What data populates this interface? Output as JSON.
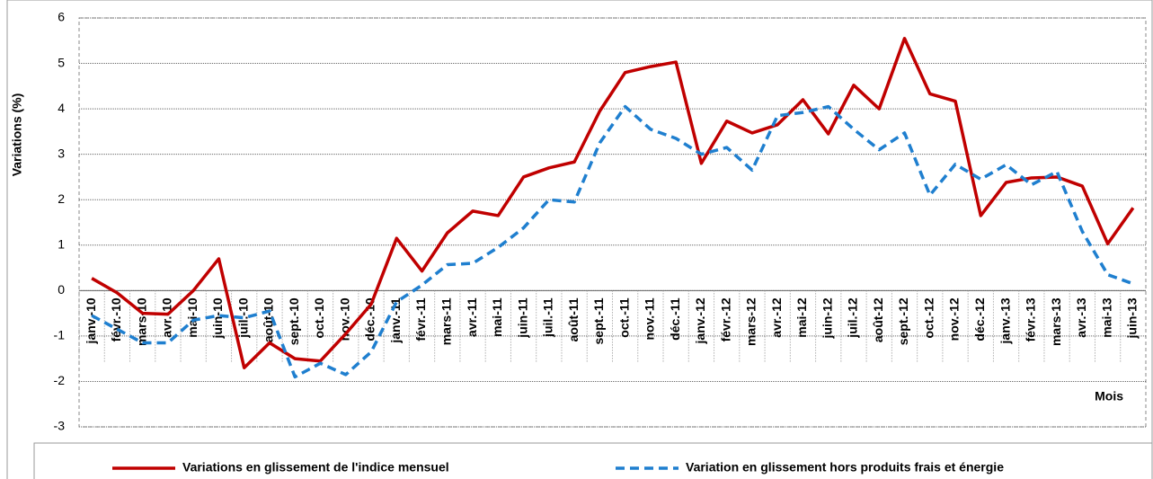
{
  "chart_data": {
    "type": "line",
    "y_label": "Variations (%)",
    "x_label": "Mois",
    "categories": [
      "janv.-10",
      "févr.-10",
      "mars-10",
      "avr.-10",
      "mai-10",
      "juin-10",
      "juil.-10",
      "août-10",
      "sept.-10",
      "oct.-10",
      "nov.-10",
      "déc.-10",
      "janv.-11",
      "févr.-11",
      "mars-11",
      "avr.-11",
      "mai-11",
      "juin-11",
      "juil.-11",
      "août-11",
      "sept.-11",
      "oct.-11",
      "nov.-11",
      "déc.-11",
      "janv.-12",
      "févr.-12",
      "mars-12",
      "avr.-12",
      "mai-12",
      "juin-12",
      "juil.-12",
      "août-12",
      "sept.-12",
      "oct.-12",
      "nov.-12",
      "déc.-12",
      "janv.-13",
      "févr.-13",
      "mars-13",
      "avr.-13",
      "mai-13",
      "juin-13"
    ],
    "series": [
      {
        "name": "Variations en glissement de l'indice mensuel",
        "color": "#c00000",
        "dash": false,
        "values": [
          0.27,
          -0.05,
          -0.5,
          -0.52,
          0.0,
          0.7,
          -1.7,
          -1.15,
          -1.5,
          -1.55,
          -0.95,
          -0.3,
          1.15,
          0.43,
          1.27,
          1.75,
          1.65,
          2.5,
          2.7,
          2.83,
          3.95,
          4.8,
          4.93,
          5.03,
          2.8,
          3.73,
          3.47,
          3.65,
          4.2,
          3.45,
          4.52,
          4.0,
          5.55,
          4.33,
          4.17,
          1.65,
          2.38,
          2.48,
          2.5,
          2.3,
          1.03,
          1.82
        ]
      },
      {
        "name": "Variation en glissement hors produits frais et énergie",
        "color": "#1f7fcf",
        "dash": true,
        "values": [
          -0.55,
          -0.85,
          -1.15,
          -1.15,
          -0.65,
          -0.55,
          -0.6,
          -0.45,
          -1.9,
          -1.6,
          -1.85,
          -1.35,
          -0.25,
          0.12,
          0.57,
          0.6,
          0.95,
          1.38,
          2.0,
          1.95,
          3.25,
          4.05,
          3.55,
          3.35,
          3.0,
          3.15,
          2.65,
          3.85,
          3.92,
          4.05,
          3.55,
          3.1,
          3.47,
          2.1,
          2.78,
          2.45,
          2.77,
          2.33,
          2.62,
          1.3,
          0.35,
          0.15
        ]
      }
    ],
    "ylim": [
      -3,
      6
    ],
    "yticks": [
      -3,
      -2,
      -1,
      0,
      1,
      2,
      3,
      4,
      5,
      6
    ],
    "grid": true,
    "legend": "bottom"
  }
}
